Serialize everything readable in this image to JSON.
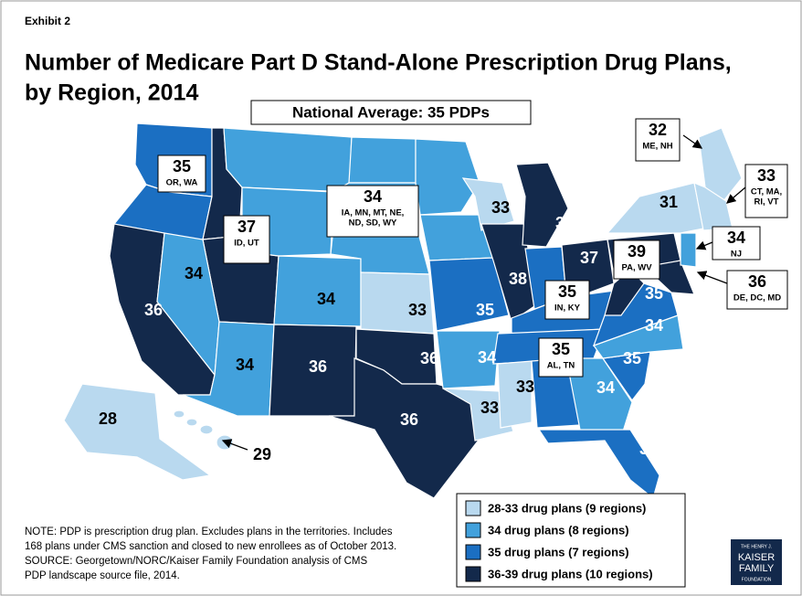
{
  "exhibit": "Exhibit 2",
  "title_lines": [
    "Number of Medicare Part D Stand-Alone Prescription Drug Plans,",
    "by Region, 2014"
  ],
  "national_average": "National Average: 35 PDPs",
  "boxed_regions": [
    {
      "value": 35,
      "states": [
        "OR, WA"
      ]
    },
    {
      "value": 37,
      "states": [
        "ID, UT"
      ]
    },
    {
      "value": 34,
      "states": [
        "IA, MN, MT, NE,",
        "ND, SD, WY"
      ]
    },
    {
      "value": 32,
      "states": [
        "ME, NH"
      ]
    },
    {
      "value": 33,
      "states": [
        "CT, MA,",
        "RI, VT"
      ]
    },
    {
      "value": 34,
      "states": [
        "NJ"
      ]
    },
    {
      "value": 39,
      "states": [
        "PA, WV"
      ]
    },
    {
      "value": 36,
      "states": [
        "DE, DC, MD"
      ]
    },
    {
      "value": 35,
      "states": [
        "IN, KY"
      ]
    },
    {
      "value": 35,
      "states": [
        "AL, TN"
      ]
    }
  ],
  "map_labels": [
    36,
    34,
    34,
    33,
    34,
    36,
    36,
    36,
    35,
    38,
    36,
    37,
    33,
    31,
    35,
    34,
    35,
    34,
    35,
    34,
    33,
    33,
    28,
    29
  ],
  "legend": [
    {
      "label": "28-33 drug plans (9 regions)",
      "color": "#b9d9ef"
    },
    {
      "label": "34 drug plans (8 regions)",
      "color": "#42a1dc"
    },
    {
      "label": "35 drug plans (7 regions)",
      "color": "#1b6fc2"
    },
    {
      "label": "36-39 drug plans (10 regions)",
      "color": "#13294b"
    }
  ],
  "note_lines": [
    "NOTE: PDP is prescription drug plan. Excludes plans in the territories. Includes",
    "168 plans under CMS sanction and closed to new enrollees as of October 2013.",
    "SOURCE: Georgetown/NORC/Kaiser Family Foundation analysis of CMS",
    "PDP landscape source file, 2014."
  ],
  "logo_lines": [
    "THE HENRY J.",
    "KAISER",
    "FAMILY",
    "FOUNDATION"
  ]
}
